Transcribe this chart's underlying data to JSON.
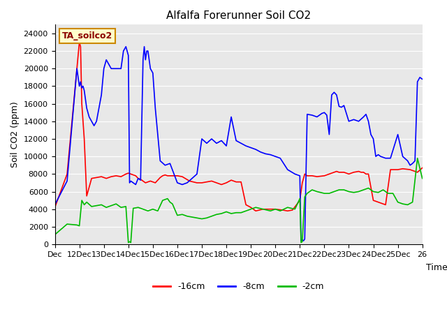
{
  "title": "Alfalfa Forerunner Soil CO2",
  "ylabel": "Soil CO2 (ppm)",
  "xlabel": "Time",
  "ylim": [
    0,
    25000
  ],
  "yticks": [
    0,
    2000,
    4000,
    6000,
    8000,
    10000,
    12000,
    14000,
    16000,
    18000,
    20000,
    22000,
    24000
  ],
  "xtick_labels": [
    "Dec",
    "12Dec",
    "13Dec",
    "14Dec",
    "15Dec",
    "16Dec",
    "17Dec",
    "18Dec",
    "19Dec",
    "20Dec",
    "21Dec",
    "22Dec",
    "23Dec",
    "24Dec",
    "25Dec",
    "26"
  ],
  "legend_label": "TA_soilco2",
  "series_labels": [
    "-16cm",
    "-8cm",
    "-2cm"
  ],
  "series_colors": [
    "#ff0000",
    "#0000ff",
    "#00bb00"
  ],
  "bg_color": "#e8e8e8",
  "fig_color": "#ffffff",
  "red_x": [
    0.0,
    0.5,
    0.9,
    1.0,
    1.05,
    1.1,
    1.2,
    1.3,
    1.5,
    1.7,
    1.9,
    2.1,
    2.3,
    2.5,
    2.7,
    2.9,
    3.0,
    3.1,
    3.2,
    3.3,
    3.4,
    3.5,
    3.6,
    3.7,
    3.8,
    3.9,
    4.0,
    4.1,
    4.2,
    4.3,
    4.4,
    4.5,
    4.6,
    4.8,
    5.0,
    5.2,
    5.5,
    5.8,
    6.0,
    6.2,
    6.4,
    6.6,
    6.8,
    7.0,
    7.2,
    7.4,
    7.6,
    7.8,
    8.0,
    8.2,
    8.5,
    9.0,
    9.3,
    9.5,
    9.7,
    10.0,
    10.1,
    10.2,
    10.3,
    10.4,
    10.5,
    10.7,
    11.0,
    11.2,
    11.4,
    11.5,
    11.6,
    11.8,
    12.0,
    12.2,
    12.4,
    12.5,
    12.6,
    12.7,
    12.8,
    13.0,
    13.2,
    13.4,
    13.5,
    13.7,
    14.0,
    14.2,
    14.5,
    14.8,
    15.0
  ],
  "red_y": [
    4200,
    8000,
    20000,
    23000,
    22500,
    16000,
    12000,
    5500,
    7500,
    7600,
    7700,
    7500,
    7700,
    7800,
    7700,
    8000,
    8100,
    8000,
    7900,
    7800,
    7500,
    7400,
    7200,
    7000,
    7100,
    7200,
    7100,
    7000,
    7300,
    7600,
    7800,
    7900,
    7800,
    7800,
    7800,
    7700,
    7200,
    7000,
    7000,
    7100,
    7200,
    7000,
    6800,
    7000,
    7300,
    7100,
    7100,
    4500,
    4200,
    3800,
    4000,
    4000,
    3900,
    3800,
    3900,
    5000,
    7000,
    8000,
    7800,
    7800,
    7800,
    7700,
    7800,
    8000,
    8200,
    8300,
    8200,
    8200,
    8000,
    8200,
    8300,
    8200,
    8200,
    8000,
    8000,
    5000,
    4800,
    4600,
    4500,
    8500,
    8500,
    8600,
    8500,
    8200,
    8700
  ],
  "blue_x": [
    0.0,
    0.5,
    0.9,
    1.0,
    1.05,
    1.1,
    1.15,
    1.2,
    1.3,
    1.4,
    1.5,
    1.6,
    1.7,
    1.8,
    1.9,
    2.0,
    2.1,
    2.2,
    2.3,
    2.5,
    2.7,
    2.8,
    2.9,
    3.0,
    3.05,
    3.1,
    3.2,
    3.3,
    3.4,
    3.5,
    3.6,
    3.65,
    3.7,
    3.75,
    3.8,
    3.9,
    4.0,
    4.1,
    4.3,
    4.5,
    4.7,
    5.0,
    5.2,
    5.4,
    5.6,
    5.8,
    6.0,
    6.2,
    6.4,
    6.6,
    6.8,
    7.0,
    7.2,
    7.4,
    7.6,
    7.8,
    8.0,
    8.2,
    8.4,
    8.6,
    8.8,
    9.0,
    9.2,
    9.5,
    9.8,
    10.0,
    10.05,
    10.1,
    10.15,
    10.2,
    10.3,
    10.5,
    10.7,
    10.9,
    11.0,
    11.1,
    11.2,
    11.3,
    11.4,
    11.5,
    11.6,
    11.7,
    11.8,
    12.0,
    12.2,
    12.4,
    12.6,
    12.7,
    12.8,
    12.9,
    13.0,
    13.1,
    13.2,
    13.3,
    13.5,
    13.7,
    14.0,
    14.2,
    14.4,
    14.5,
    14.6,
    14.7,
    14.8,
    14.9,
    15.0
  ],
  "blue_y": [
    4500,
    7200,
    20000,
    18000,
    18500,
    17800,
    18000,
    17500,
    15500,
    14500,
    14000,
    13500,
    14000,
    15500,
    17000,
    20000,
    21000,
    20500,
    20000,
    20000,
    20000,
    22000,
    22500,
    21500,
    7000,
    7200,
    7000,
    6800,
    7500,
    7300,
    21000,
    22500,
    21000,
    22000,
    22000,
    20000,
    19500,
    15500,
    9500,
    9000,
    9200,
    7000,
    6800,
    7000,
    7500,
    8000,
    12000,
    11500,
    12000,
    11500,
    11800,
    11200,
    14500,
    11800,
    11500,
    11200,
    11000,
    10800,
    10500,
    10300,
    10200,
    10000,
    9800,
    8500,
    8000,
    7800,
    400,
    500,
    400,
    600,
    14800,
    14700,
    14500,
    14900,
    15000,
    14700,
    12500,
    17000,
    17300,
    17000,
    15700,
    15600,
    15800,
    14000,
    14200,
    14000,
    14500,
    14800,
    14000,
    12500,
    12000,
    10000,
    10200,
    10000,
    9800,
    9800,
    12500,
    10000,
    9500,
    9000,
    9200,
    9500,
    18500,
    19000,
    18800
  ],
  "green_x": [
    0.0,
    0.5,
    0.9,
    1.0,
    1.1,
    1.2,
    1.3,
    1.5,
    1.7,
    1.9,
    2.1,
    2.3,
    2.4,
    2.5,
    2.7,
    2.9,
    3.0,
    3.05,
    3.1,
    3.2,
    3.4,
    3.6,
    3.8,
    4.0,
    4.2,
    4.4,
    4.5,
    4.6,
    4.7,
    4.8,
    5.0,
    5.2,
    5.4,
    5.6,
    5.8,
    6.0,
    6.2,
    6.4,
    6.6,
    6.8,
    7.0,
    7.2,
    7.4,
    7.6,
    7.8,
    8.0,
    8.2,
    8.5,
    8.8,
    9.0,
    9.2,
    9.5,
    9.8,
    10.0,
    10.05,
    10.1,
    10.2,
    10.3,
    10.5,
    10.7,
    11.0,
    11.2,
    11.4,
    11.6,
    11.8,
    12.0,
    12.2,
    12.4,
    12.6,
    12.8,
    13.0,
    13.2,
    13.4,
    13.6,
    13.8,
    14.0,
    14.2,
    14.4,
    14.6,
    14.8,
    15.0
  ],
  "green_y": [
    1100,
    2300,
    2200,
    2100,
    5000,
    4500,
    4800,
    4300,
    4400,
    4500,
    4200,
    4400,
    4500,
    4600,
    4200,
    4300,
    200,
    300,
    200,
    4100,
    4200,
    4000,
    3800,
    4000,
    3800,
    5000,
    5100,
    5200,
    4800,
    4600,
    3300,
    3400,
    3200,
    3100,
    3000,
    2900,
    3000,
    3200,
    3400,
    3500,
    3700,
    3500,
    3600,
    3600,
    3800,
    4000,
    4200,
    4000,
    3800,
    4000,
    3800,
    4200,
    4000,
    5200,
    200,
    300,
    5400,
    5800,
    6200,
    6000,
    5800,
    5800,
    6000,
    6200,
    6200,
    6000,
    5900,
    6000,
    6200,
    6400,
    6000,
    5900,
    6200,
    5800,
    5800,
    4800,
    4600,
    4500,
    4800,
    9800,
    7500
  ]
}
